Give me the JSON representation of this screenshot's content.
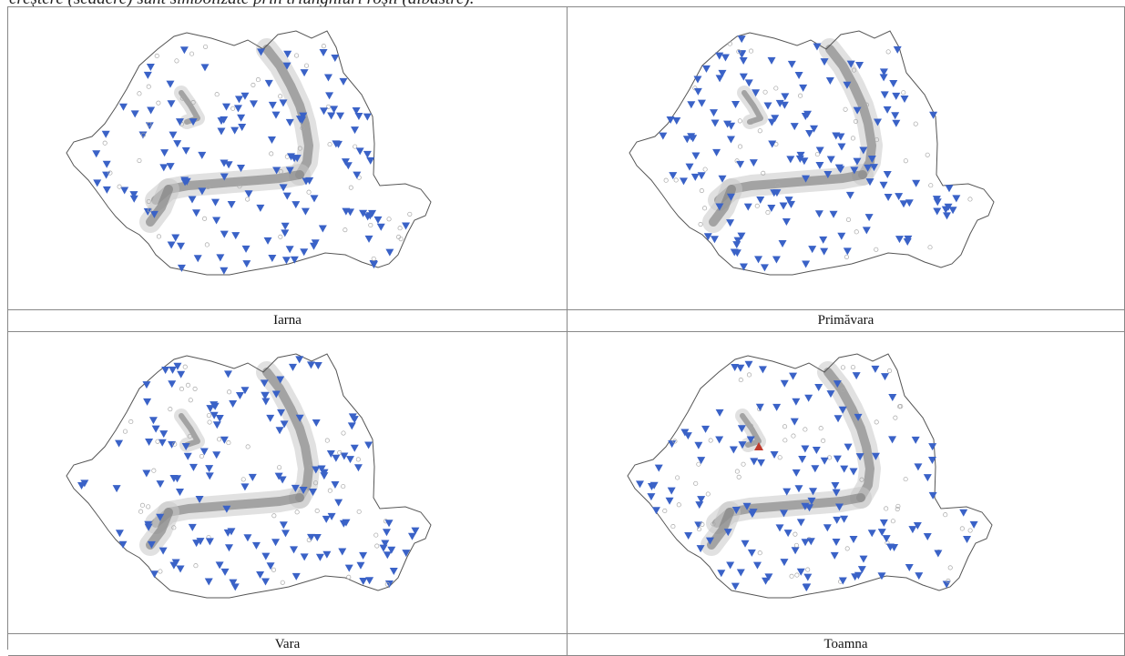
{
  "document": {
    "caption_fragment": "creștere (scădere) sunt simbolizate prin triunghiuri roșii (albastre)."
  },
  "panels": [
    {
      "id": "iarna",
      "label": "Iarna",
      "red_triangles": 0
    },
    {
      "id": "primavara",
      "label": "Primăvara",
      "red_triangles": 0
    },
    {
      "id": "vara",
      "label": "Vara",
      "red_triangles": 0
    },
    {
      "id": "toamna",
      "label": "Toamna",
      "red_triangles": 1
    }
  ],
  "colors": {
    "decrease_triangle": "#3a62c7",
    "increase_triangle": "#c0392b",
    "border": "#555555",
    "relief": "#7a7a7a"
  },
  "legend_semantics": {
    "down_triangle": "scădere",
    "up_triangle": "creștere",
    "circle": "nesemnificativ"
  }
}
